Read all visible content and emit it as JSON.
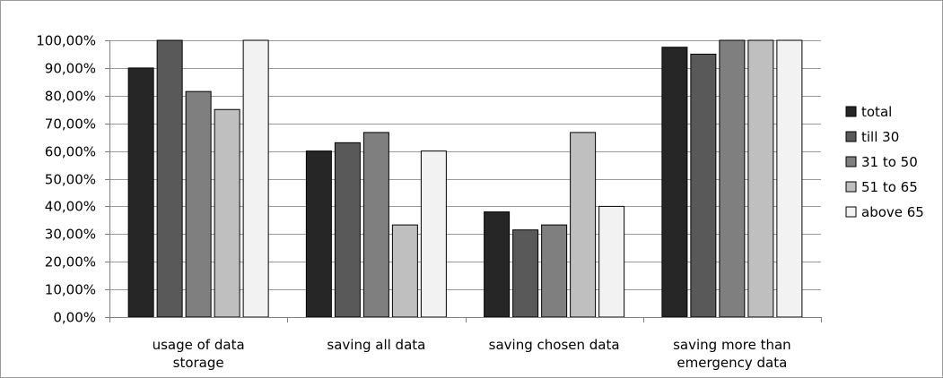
{
  "chart_data": {
    "type": "bar",
    "categories": [
      [
        "usage of data",
        "storage"
      ],
      [
        "saving all data"
      ],
      [
        "saving chosen data"
      ],
      [
        "saving more than",
        "emergency data"
      ]
    ],
    "series": [
      {
        "name": "total",
        "color": "#262626",
        "values": [
          0.9,
          0.6,
          0.38,
          0.975
        ]
      },
      {
        "name": "till 30",
        "color": "#595959",
        "values": [
          1.0,
          0.63,
          0.315,
          0.95
        ]
      },
      {
        "name": "31 to 50",
        "color": "#7f7f7f",
        "values": [
          0.815,
          0.667,
          0.333,
          1.0
        ]
      },
      {
        "name": "51 to 65",
        "color": "#bfbfbf",
        "values": [
          0.75,
          0.333,
          0.667,
          1.0
        ]
      },
      {
        "name": "above 65",
        "color": "#f2f2f2",
        "values": [
          1.0,
          0.6,
          0.4,
          1.0
        ]
      }
    ],
    "y_ticks": [
      "0,00%",
      "10,00%",
      "20,00%",
      "30,00%",
      "40,00%",
      "50,00%",
      "60,00%",
      "70,00%",
      "80,00%",
      "90,00%",
      "100,00%"
    ],
    "ylim": [
      0,
      1
    ],
    "grid": true,
    "legend_position": "right"
  }
}
